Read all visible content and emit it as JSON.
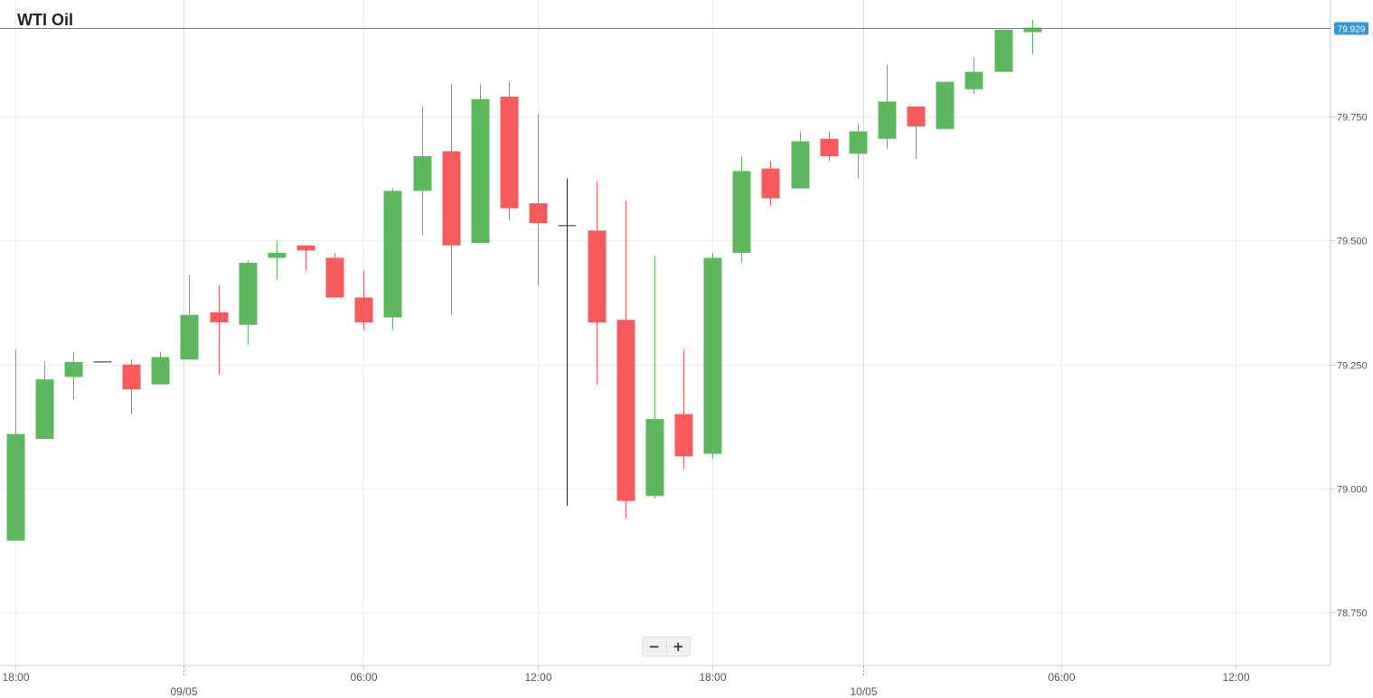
{
  "chart_data": {
    "type": "candlestick",
    "title": "WTI Oil",
    "current_price": 79.929,
    "current_price_label": "79.929",
    "ylim": [
      78.65,
      79.98
    ],
    "y_ticks": [
      {
        "value": 78.75,
        "label": "78.750"
      },
      {
        "value": 79.0,
        "label": "79.000"
      },
      {
        "value": 79.25,
        "label": "79.250"
      },
      {
        "value": 79.5,
        "label": "79.500"
      },
      {
        "value": 79.75,
        "label": "79.750"
      }
    ],
    "x_ticks": [
      {
        "index": 0,
        "label": "18:00"
      },
      {
        "index": 12,
        "label": "06:00"
      },
      {
        "index": 18,
        "label": "12:00"
      },
      {
        "index": 24,
        "label": "18:00"
      },
      {
        "index": 36,
        "label": "06:00"
      },
      {
        "index": 42,
        "label": "12:00"
      }
    ],
    "date_labels": [
      {
        "index": 5.8,
        "label": "09/05"
      },
      {
        "index": 29.2,
        "label": "10/05"
      }
    ],
    "bullish_color": "#5cb85c",
    "bearish_color": "#f75b5b",
    "neutral_color": "#222222",
    "current_line_color": "#2f9ad8",
    "candles": [
      {
        "open": 78.895,
        "high": 79.28,
        "low": 78.895,
        "close": 79.11
      },
      {
        "open": 79.1,
        "high": 79.255,
        "low": 79.1,
        "close": 79.22
      },
      {
        "open": 79.225,
        "high": 79.275,
        "low": 79.18,
        "close": 79.255
      },
      {
        "open": 79.255,
        "high": 79.255,
        "low": 79.255,
        "close": 79.255
      },
      {
        "open": 79.25,
        "high": 79.26,
        "low": 79.15,
        "close": 79.2
      },
      {
        "open": 79.21,
        "high": 79.275,
        "low": 79.21,
        "close": 79.265
      },
      {
        "open": 79.26,
        "high": 79.43,
        "low": 79.26,
        "close": 79.35
      },
      {
        "open": 79.355,
        "high": 79.41,
        "low": 79.23,
        "close": 79.335
      },
      {
        "open": 79.33,
        "high": 79.46,
        "low": 79.29,
        "close": 79.455
      },
      {
        "open": 79.465,
        "high": 79.5,
        "low": 79.42,
        "close": 79.475
      },
      {
        "open": 79.49,
        "high": 79.49,
        "low": 79.44,
        "close": 79.48
      },
      {
        "open": 79.465,
        "high": 79.475,
        "low": 79.385,
        "close": 79.385
      },
      {
        "open": 79.385,
        "high": 79.44,
        "low": 79.32,
        "close": 79.335
      },
      {
        "open": 79.345,
        "high": 79.605,
        "low": 79.32,
        "close": 79.6
      },
      {
        "open": 79.6,
        "high": 79.77,
        "low": 79.51,
        "close": 79.67
      },
      {
        "open": 79.68,
        "high": 79.815,
        "low": 79.35,
        "close": 79.49
      },
      {
        "open": 79.495,
        "high": 79.815,
        "low": 79.495,
        "close": 79.785
      },
      {
        "open": 79.79,
        "high": 79.82,
        "low": 79.54,
        "close": 79.565
      },
      {
        "open": 79.575,
        "high": 79.755,
        "low": 79.41,
        "close": 79.535
      },
      {
        "open": 79.53,
        "high": 79.625,
        "low": 78.965,
        "close": 79.53
      },
      {
        "open": 79.52,
        "high": 79.62,
        "low": 79.21,
        "close": 79.335
      },
      {
        "open": 79.34,
        "high": 79.58,
        "low": 78.94,
        "close": 78.975
      },
      {
        "open": 78.985,
        "high": 79.47,
        "low": 78.98,
        "close": 79.14
      },
      {
        "open": 79.15,
        "high": 79.28,
        "low": 79.04,
        "close": 79.065
      },
      {
        "open": 79.07,
        "high": 79.475,
        "low": 79.06,
        "close": 79.465
      },
      {
        "open": 79.475,
        "high": 79.67,
        "low": 79.455,
        "close": 79.64
      },
      {
        "open": 79.645,
        "high": 79.66,
        "low": 79.57,
        "close": 79.585
      },
      {
        "open": 79.605,
        "high": 79.72,
        "low": 79.605,
        "close": 79.7
      },
      {
        "open": 79.705,
        "high": 79.72,
        "low": 79.66,
        "close": 79.67
      },
      {
        "open": 79.675,
        "high": 79.735,
        "low": 79.625,
        "close": 79.72
      },
      {
        "open": 79.705,
        "high": 79.855,
        "low": 79.685,
        "close": 79.78
      },
      {
        "open": 79.77,
        "high": 79.77,
        "low": 79.665,
        "close": 79.73
      },
      {
        "open": 79.725,
        "high": 79.82,
        "low": 79.725,
        "close": 79.82
      },
      {
        "open": 79.805,
        "high": 79.87,
        "low": 79.795,
        "close": 79.84
      },
      {
        "open": 79.84,
        "high": 79.925,
        "low": 79.84,
        "close": 79.925
      },
      {
        "open": 79.92,
        "high": 79.945,
        "low": 79.875,
        "close": 79.929
      }
    ]
  },
  "zoom": {
    "minus_label": "−",
    "plus_label": "+"
  }
}
